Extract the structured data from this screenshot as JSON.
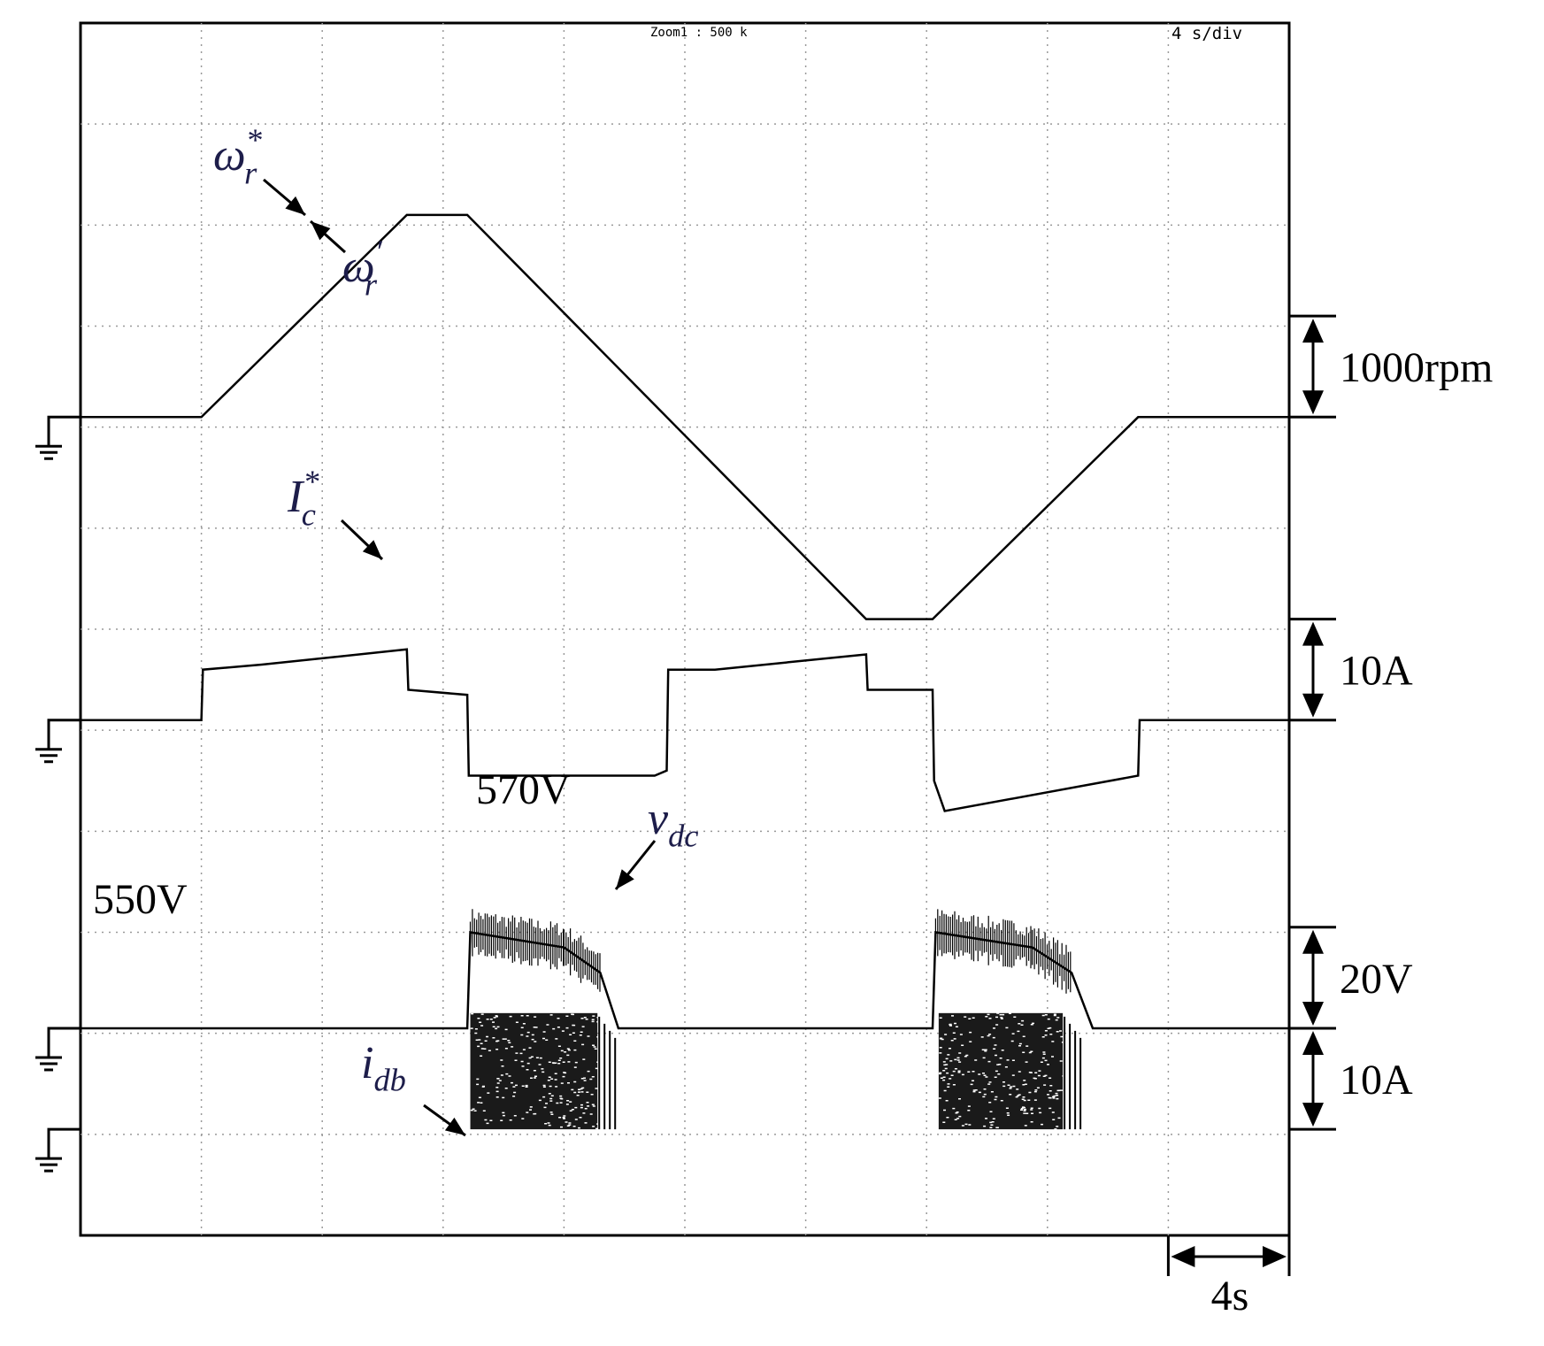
{
  "chart_data": {
    "type": "line",
    "header": {
      "zoom_label": "Zoom1 : 500 k",
      "timebase_label": "4 s/div"
    },
    "time_axis": {
      "unit": "s",
      "s_per_div": 4,
      "divisions": 10,
      "range": [
        0,
        40
      ],
      "scale_label": "4s"
    },
    "grid": true,
    "series": [
      {
        "name": "speed",
        "trace_labels": [
          {
            "base": "ω",
            "sub": "r",
            "sup": "*"
          },
          {
            "base": "ω",
            "sub": "r",
            "sup": "′"
          }
        ],
        "scale_label": "1000rpm",
        "unit": "rpm",
        "per_div": 1000,
        "offset_div": 8.1,
        "points": [
          [
            0,
            0
          ],
          [
            4,
            0
          ],
          [
            10.8,
            2.0
          ],
          [
            12.8,
            2.0
          ],
          [
            26,
            -2.0
          ],
          [
            28.2,
            -2.0
          ],
          [
            35,
            0
          ],
          [
            40,
            0
          ]
        ]
      },
      {
        "name": "capacitor current reference",
        "trace_labels": [
          {
            "base": "I",
            "sub": "c",
            "sup": "*"
          }
        ],
        "scale_label": "10A",
        "unit": "A",
        "per_div": 10,
        "offset_div": 5.1,
        "points": [
          [
            0,
            0
          ],
          [
            4,
            0
          ],
          [
            4.05,
            0.5
          ],
          [
            6,
            0.55
          ],
          [
            10.8,
            0.7
          ],
          [
            10.85,
            0.3
          ],
          [
            12.8,
            0.25
          ],
          [
            12.85,
            -0.55
          ],
          [
            19,
            -0.55
          ],
          [
            19.4,
            -0.5
          ],
          [
            19.45,
            0.5
          ],
          [
            21,
            0.5
          ],
          [
            26,
            0.65
          ],
          [
            26.05,
            0.3
          ],
          [
            28.2,
            0.3
          ],
          [
            28.25,
            -0.6
          ],
          [
            28.6,
            -0.9
          ],
          [
            35,
            -0.55
          ],
          [
            35.05,
            0
          ],
          [
            40,
            0
          ]
        ]
      },
      {
        "name": "DC-link voltage",
        "trace_labels": [
          {
            "base": "v",
            "sub": "dc",
            "sup": ""
          }
        ],
        "scale_label": "20V",
        "unit": "V",
        "per_div": 20,
        "offset_div": 2.05,
        "base_value_label": "550V",
        "peak_value_label": "570V",
        "points": [
          [
            0,
            0
          ],
          [
            12.8,
            0
          ],
          [
            12.9,
            0.95
          ],
          [
            16,
            0.8
          ],
          [
            17.2,
            0.55
          ],
          [
            17.8,
            0
          ],
          [
            28.2,
            0
          ],
          [
            28.3,
            0.95
          ],
          [
            31.5,
            0.8
          ],
          [
            32.8,
            0.55
          ],
          [
            33.5,
            0
          ],
          [
            40,
            0
          ]
        ]
      },
      {
        "name": "dynamic braking current",
        "trace_labels": [
          {
            "base": "i",
            "sub": "db",
            "sup": ""
          }
        ],
        "scale_label": "10A",
        "unit": "A",
        "per_div": 10,
        "offset_div": 1.05,
        "bursts": [
          [
            12.9,
            17.4,
            1.15
          ],
          [
            28.4,
            32.8,
            1.15
          ]
        ]
      }
    ]
  }
}
